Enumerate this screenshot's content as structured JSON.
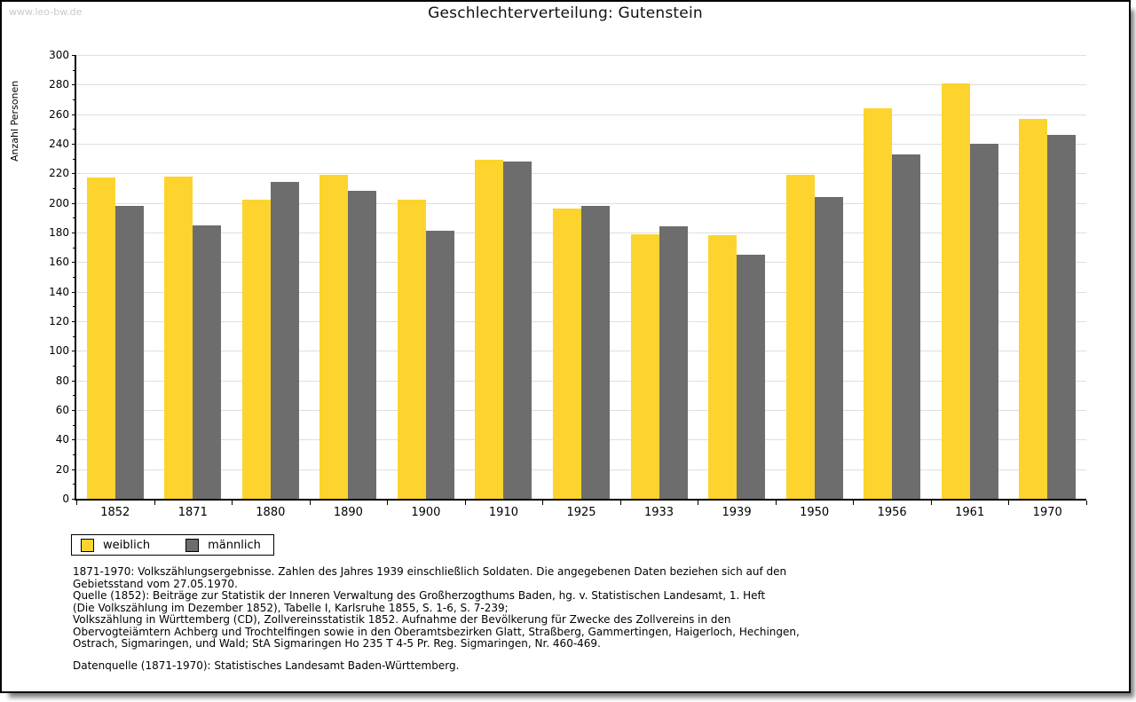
{
  "watermark": "www.leo-bw.de",
  "header": {
    "title": "Geschlechterverteilung: Gutenstein"
  },
  "chart_data": {
    "type": "bar",
    "title": "Geschlechterverteilung: Gutenstein",
    "xlabel": "",
    "ylabel": "Anzahl Personen",
    "categories": [
      "1852",
      "1871",
      "1880",
      "1890",
      "1900",
      "1910",
      "1925",
      "1933",
      "1939",
      "1950",
      "1956",
      "1961",
      "1970"
    ],
    "series": [
      {
        "name": "weiblich",
        "color": "#FCD42D",
        "values": [
          217,
          218,
          202,
          219,
          202,
          229,
          196,
          179,
          178,
          219,
          264,
          281,
          257
        ]
      },
      {
        "name": "männlich",
        "color": "#6D6D6D",
        "values": [
          198,
          185,
          214,
          208,
          181,
          228,
          198,
          184,
          165,
          204,
          233,
          240,
          246
        ]
      }
    ],
    "ylim": [
      0,
      300
    ],
    "ytick_step": 20,
    "minor_tick_step": 10,
    "grid": true,
    "gridline_color": "#dedede",
    "legend_position": "bottom-left"
  },
  "legend": {
    "items": [
      {
        "label": "weiblich",
        "color": "#FCD42D"
      },
      {
        "label": "männlich",
        "color": "#6D6D6D"
      }
    ]
  },
  "footnotes": {
    "lines": [
      "1871-1970: Volkszählungsergebnisse. Zahlen des Jahres 1939 einschließlich Soldaten. Die angegebenen Daten beziehen sich auf den",
      "Gebietsstand vom 27.05.1970.",
      "Quelle (1852): Beiträge zur Statistik der Inneren Verwaltung des Großherzogthums Baden, hg. v. Statistischen Landesamt, 1. Heft",
      "(Die Volkszählung im Dezember 1852), Tabelle I, Karlsruhe 1855, S. 1-6, S. 7-239;",
      "Volkszählung in Württemberg (CD), Zollvereinsstatistik 1852. Aufnahme der Bevölkerung für Zwecke des Zollvereins in den",
      "Obervogteiämtern Achberg und Trochtelfingen sowie in den Oberamtsbezirken Glatt, Straßberg, Gammertingen, Haigerloch, Hechingen,",
      "Ostrach, Sigmaringen, und Wald; StA Sigmaringen Ho 235 T 4-5 Pr. Reg. Sigmaringen, Nr. 460-469."
    ],
    "datasource": "Datenquelle (1871-1970): Statistisches Landesamt Baden-Württemberg."
  }
}
